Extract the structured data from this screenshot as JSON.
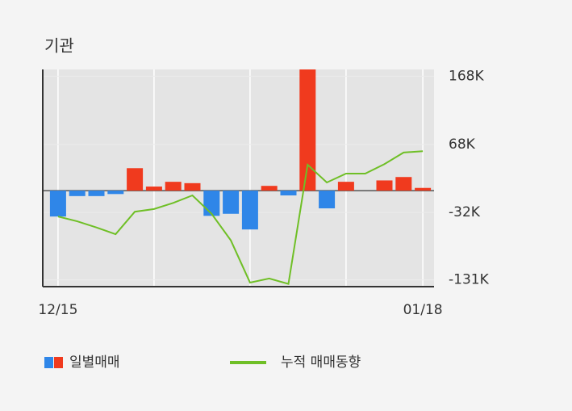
{
  "chart_data": {
    "type": "bar",
    "title": "기관",
    "categories": [
      "12/15",
      null,
      null,
      null,
      null,
      null,
      null,
      null,
      null,
      null,
      null,
      null,
      null,
      null,
      null,
      null,
      null,
      null,
      null,
      "01/18"
    ],
    "series": [
      {
        "name": "일별매매",
        "type": "bar",
        "color_positive": "#f03a1e",
        "color_negative": "#2f86e8",
        "values": [
          -38,
          -8,
          -8,
          -5,
          33,
          6,
          13,
          11,
          -37,
          -34,
          -57,
          7,
          -7,
          190,
          -26,
          13,
          0,
          15,
          20,
          4
        ]
      },
      {
        "name": "누적 매매동향",
        "type": "line",
        "color": "#6fbf26",
        "values": [
          -38,
          -45,
          -54,
          -64,
          -31,
          -27,
          -18,
          -7,
          -34,
          -73,
          -135,
          -129,
          -137,
          38,
          12,
          25,
          25,
          39,
          56,
          58
        ]
      }
    ],
    "ylim": [
      -141,
      178
    ],
    "yticks": [
      {
        "value": 168,
        "label": "168K"
      },
      {
        "value": 68,
        "label": "68K"
      },
      {
        "value": -32,
        "label": "-32K"
      },
      {
        "value": -131,
        "label": "-131K"
      }
    ],
    "grid": true
  }
}
